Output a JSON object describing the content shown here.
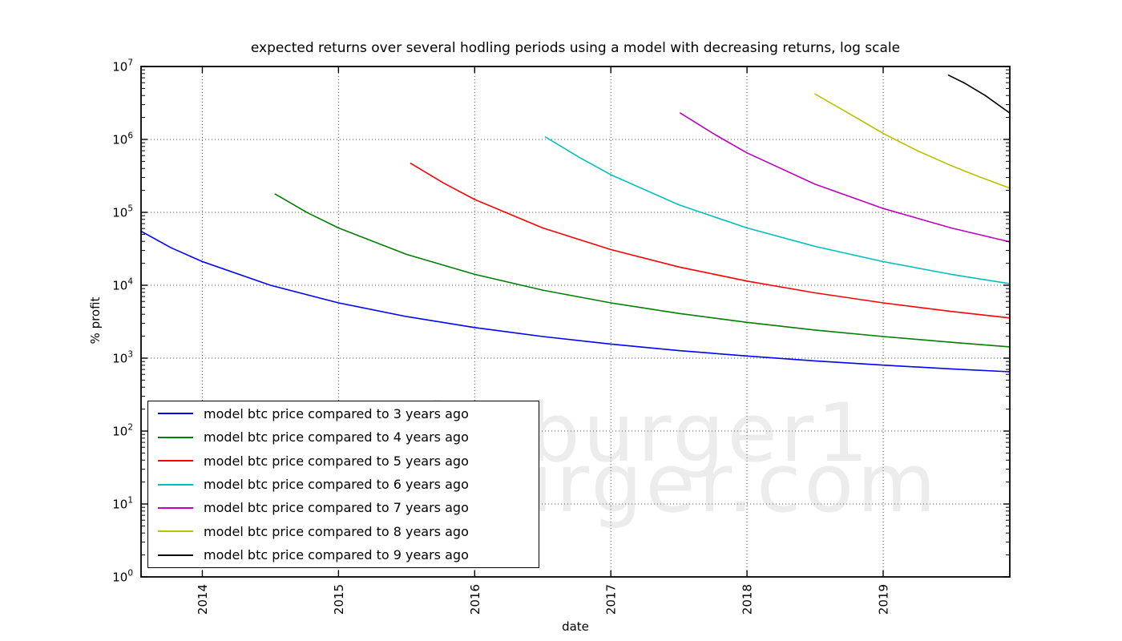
{
  "title": "expected returns over several hodling periods using a model with decreasing returns, log scale",
  "watermark": {
    "line1": "@hcburger1",
    "line2": "hcburger.com"
  },
  "axes": {
    "x_label": "date",
    "y_label": "% profit",
    "x_tick_labels": [
      "2014",
      "2015",
      "2016",
      "2017",
      "2018",
      "2019"
    ],
    "y_tick_base": "10",
    "y_tick_exponents": [
      "0",
      "1",
      "2",
      "3",
      "4",
      "5",
      "6",
      "7"
    ]
  },
  "legend": {
    "items": [
      {
        "label": "model btc price compared to 3 years ago",
        "color": "#0000ff"
      },
      {
        "label": "model btc price compared to 4 years ago",
        "color": "#007f00"
      },
      {
        "label": "model btc price compared to 5 years ago",
        "color": "#ff0000"
      },
      {
        "label": "model btc price compared to 6 years ago",
        "color": "#00bfbf"
      },
      {
        "label": "model btc price compared to 7 years ago",
        "color": "#bf00bf"
      },
      {
        "label": "model btc price compared to 8 years ago",
        "color": "#bfbf00"
      },
      {
        "label": "model btc price compared to 9 years ago",
        "color": "#000000"
      }
    ]
  },
  "chart_data": {
    "type": "line",
    "title": "expected returns over several hodling periods using a model with decreasing returns, log scale",
    "xlabel": "date",
    "ylabel": "% profit",
    "y_scale": "log",
    "ylim": [
      1,
      10000000
    ],
    "xlim": [
      2013.55,
      2019.93
    ],
    "x_tick_labels": [
      "2014",
      "2015",
      "2016",
      "2017",
      "2018",
      "2019"
    ],
    "y_tick_labels": [
      "10^0",
      "10^1",
      "10^2",
      "10^3",
      "10^4",
      "10^5",
      "10^6",
      "10^7"
    ],
    "grid": "dotted",
    "legend_position": "lower left",
    "series": [
      {
        "name": "model btc price compared to 3 years ago",
        "color": "#0000ff",
        "points": [
          [
            2013.55,
            55000
          ],
          [
            2013.77,
            32700
          ],
          [
            2014.0,
            21100
          ],
          [
            2014.5,
            10000
          ],
          [
            2015.0,
            5730
          ],
          [
            2015.5,
            3720
          ],
          [
            2016.0,
            2630
          ],
          [
            2016.5,
            1980
          ],
          [
            2017.0,
            1560
          ],
          [
            2017.5,
            1270
          ],
          [
            2018.0,
            1070
          ],
          [
            2018.5,
            918
          ],
          [
            2019.0,
            803
          ],
          [
            2019.5,
            713
          ],
          [
            2019.93,
            650
          ]
        ]
      },
      {
        "name": "model btc price compared to 4 years ago",
        "color": "#007f00",
        "points": [
          [
            2014.535,
            178000
          ],
          [
            2014.77,
            99300
          ],
          [
            2015.0,
            61100
          ],
          [
            2015.5,
            26500
          ],
          [
            2016.0,
            14100
          ],
          [
            2016.5,
            8570
          ],
          [
            2017.0,
            5730
          ],
          [
            2017.5,
            4100
          ],
          [
            2018.0,
            3100
          ],
          [
            2018.5,
            2430
          ],
          [
            2019.0,
            1980
          ],
          [
            2019.5,
            1650
          ],
          [
            2019.93,
            1430
          ]
        ]
      },
      {
        "name": "model btc price compared to 5 years ago",
        "color": "#ff0000",
        "points": [
          [
            2015.53,
            470000
          ],
          [
            2015.77,
            253000
          ],
          [
            2016.0,
            150000
          ],
          [
            2016.5,
            61100
          ],
          [
            2017.0,
            30800
          ],
          [
            2017.5,
            17800
          ],
          [
            2018.0,
            11400
          ],
          [
            2018.5,
            7860
          ],
          [
            2019.0,
            5730
          ],
          [
            2019.5,
            4370
          ],
          [
            2019.93,
            3560
          ]
        ]
      },
      {
        "name": "model btc price compared to 6 years ago",
        "color": "#00bfbf",
        "points": [
          [
            2016.52,
            1080000
          ],
          [
            2016.77,
            565000
          ],
          [
            2017.0,
            328000
          ],
          [
            2017.5,
            127000
          ],
          [
            2018.0,
            61100
          ],
          [
            2018.5,
            34100
          ],
          [
            2019.0,
            21100
          ],
          [
            2019.5,
            14100
          ],
          [
            2019.93,
            10500
          ]
        ]
      },
      {
        "name": "model btc price compared to 7 years ago",
        "color": "#bf00bf",
        "points": [
          [
            2017.51,
            2300000
          ],
          [
            2017.77,
            1150000
          ],
          [
            2018.0,
            653000
          ],
          [
            2018.5,
            243000
          ],
          [
            2019.0,
            113000
          ],
          [
            2019.5,
            61100
          ],
          [
            2019.93,
            39300
          ]
        ]
      },
      {
        "name": "model btc price compared to 8 years ago",
        "color": "#bfbf00",
        "points": [
          [
            2018.5,
            4200000
          ],
          [
            2018.77,
            2150000
          ],
          [
            2019.0,
            1210000
          ],
          [
            2019.25,
            701000
          ],
          [
            2019.5,
            436000
          ],
          [
            2019.7,
            311000
          ],
          [
            2019.93,
            215000
          ]
        ]
      },
      {
        "name": "model btc price compared to 9 years ago",
        "color": "#000000",
        "points": [
          [
            2019.48,
            7600000
          ],
          [
            2019.6,
            5900000
          ],
          [
            2019.75,
            4000000
          ],
          [
            2019.93,
            2300000
          ]
        ]
      }
    ]
  },
  "style": {
    "background": "#ffffff",
    "frame_color": "#000000",
    "grid_color": "#555555",
    "watermark_color": "#ececec"
  }
}
